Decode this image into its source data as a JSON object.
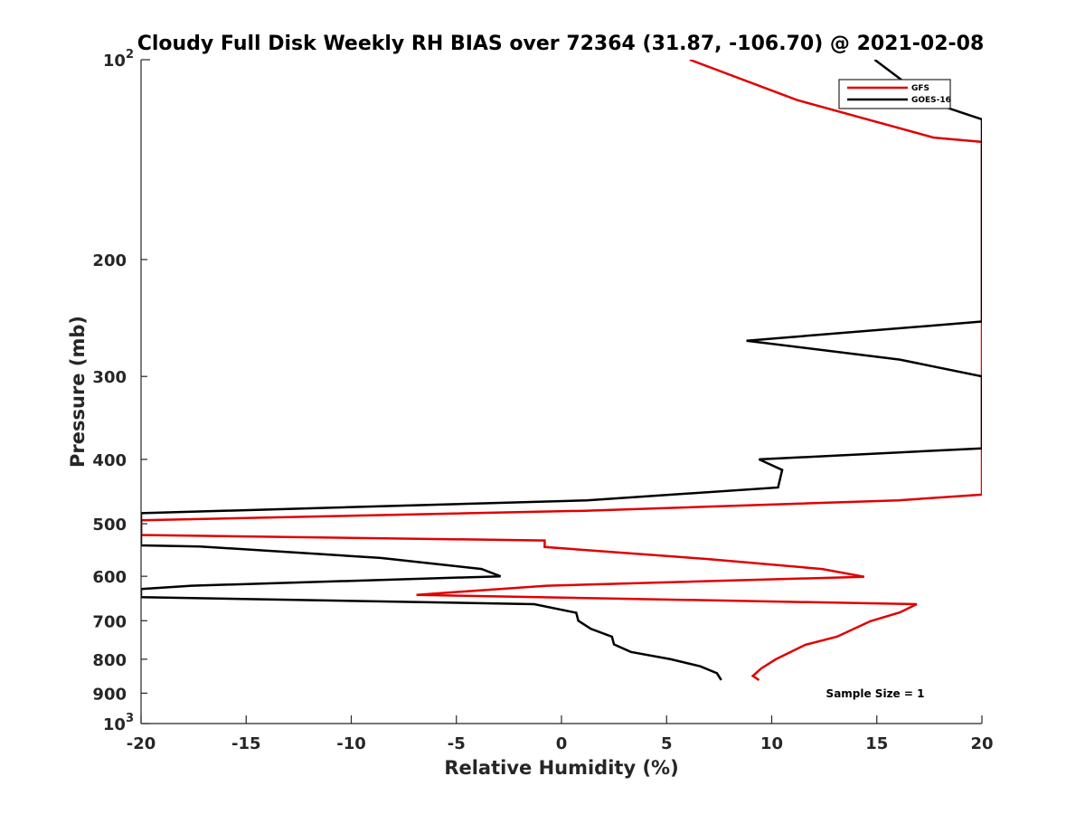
{
  "chart_data": {
    "type": "line",
    "title": "Cloudy Full Disk Weekly RH BIAS over 72364 (31.87, -106.70) @ 2021-02-08",
    "xlabel": "Relative Humidity (%)",
    "ylabel": "Pressure (mb)",
    "xlim": [
      -20,
      20
    ],
    "ylim": [
      100,
      1000
    ],
    "yscale": "log",
    "y_reversed": true,
    "grid": false,
    "legend_position": "top-right",
    "x_ticks": [
      "-20",
      "-15",
      "-10",
      "-5",
      "0",
      "5",
      "10",
      "15",
      "20"
    ],
    "y_ticks": [
      {
        "value": 100,
        "base": "10",
        "exp": "2"
      },
      {
        "value": 200,
        "label": "200"
      },
      {
        "value": 300,
        "label": "300"
      },
      {
        "value": 400,
        "label": "400"
      },
      {
        "value": 500,
        "label": "500"
      },
      {
        "value": 600,
        "label": "600"
      },
      {
        "value": 700,
        "label": "700"
      },
      {
        "value": 800,
        "label": "800"
      },
      {
        "value": 900,
        "label": "900"
      },
      {
        "value": 1000,
        "base": "10",
        "exp": "3"
      }
    ],
    "annotation": "Sample Size = 1",
    "series": [
      {
        "name": "GFS",
        "color": "#e00000",
        "points": [
          [
            6.1,
            100
          ],
          [
            11.2,
            115
          ],
          [
            17.7,
            131
          ],
          [
            20,
            133
          ],
          [
            20,
            452
          ],
          [
            16,
            461
          ],
          [
            1.1,
            478
          ],
          [
            -20,
            494
          ],
          [
            -20,
            520
          ],
          [
            -0.8,
            530
          ],
          [
            -0.8,
            542
          ],
          [
            6.9,
            565
          ],
          [
            12.4,
            585
          ],
          [
            14.4,
            601
          ],
          [
            -0.7,
            620
          ],
          [
            -6.9,
            640
          ],
          [
            16.9,
            661
          ],
          [
            16.1,
            680
          ],
          [
            14.7,
            701
          ],
          [
            13.1,
            740
          ],
          [
            11.6,
            761
          ],
          [
            10.2,
            800
          ],
          [
            9.5,
            826
          ],
          [
            9.1,
            848
          ],
          [
            9.4,
            860
          ]
        ]
      },
      {
        "name": "GOES-16",
        "color": "#000000",
        "points": [
          [
            14.9,
            100
          ],
          [
            17.6,
            116
          ],
          [
            20,
            123
          ],
          [
            20,
            248
          ],
          [
            8.8,
            265
          ],
          [
            16.1,
            283
          ],
          [
            20,
            300
          ],
          [
            20,
            385
          ],
          [
            9.4,
            400
          ],
          [
            10.5,
            415
          ],
          [
            10.3,
            441
          ],
          [
            1.2,
            461
          ],
          [
            -20,
            482
          ],
          [
            -20,
            539
          ],
          [
            -17.2,
            541
          ],
          [
            -8.6,
            563
          ],
          [
            -3.8,
            585
          ],
          [
            -2.9,
            600
          ],
          [
            -17.6,
            620
          ],
          [
            -20,
            627
          ],
          [
            -20,
            645
          ],
          [
            -1.3,
            661
          ],
          [
            0.7,
            681
          ],
          [
            0.8,
            700
          ],
          [
            1.4,
            720
          ],
          [
            2.4,
            740
          ],
          [
            2.5,
            760
          ],
          [
            3.3,
            780
          ],
          [
            5.2,
            800
          ],
          [
            6.6,
            820
          ],
          [
            7.4,
            840
          ],
          [
            7.6,
            860
          ]
        ]
      }
    ]
  }
}
